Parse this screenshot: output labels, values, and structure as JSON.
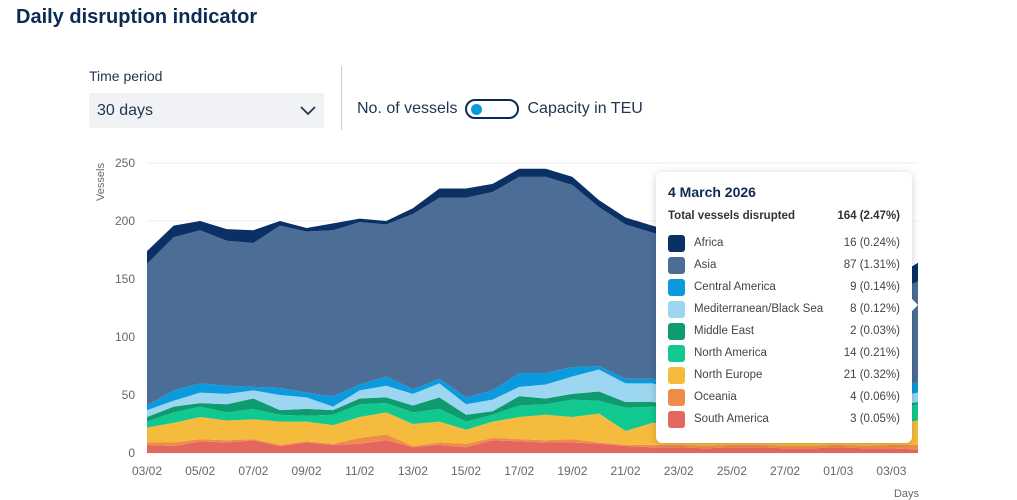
{
  "header": {
    "title": "Daily disruption indicator"
  },
  "controls": {
    "time_period_label": "Time period",
    "time_period_value": "30 days",
    "toggle_left": "No. of vessels",
    "toggle_right": "Capacity in TEU",
    "toggle_state": "No. of vessels"
  },
  "tooltip": {
    "date": "4 March 2026",
    "total_label": "Total vessels disrupted",
    "total_value": "164 (2.47%)",
    "rows": [
      {
        "name": "Africa",
        "value": "16 (0.24%)"
      },
      {
        "name": "Asia",
        "value": "87 (1.31%)"
      },
      {
        "name": "Central America",
        "value": "9 (0.14%)"
      },
      {
        "name": "Mediterranean/Black Sea",
        "value": "8 (0.12%)"
      },
      {
        "name": "Middle East",
        "value": "2 (0.03%)"
      },
      {
        "name": "North America",
        "value": "14 (0.21%)"
      },
      {
        "name": "North Europe",
        "value": "21 (0.32%)"
      },
      {
        "name": "Oceania",
        "value": "4 (0.06%)"
      },
      {
        "name": "South America",
        "value": "3 (0.05%)"
      }
    ]
  },
  "chart_data": {
    "type": "area",
    "stacked": true,
    "ylabel": "Vessels",
    "xlabel": "Days",
    "ylim": [
      0,
      250
    ],
    "yticks": [
      0,
      50,
      100,
      150,
      200,
      250
    ],
    "x": [
      "03/02",
      "04/02",
      "05/02",
      "06/02",
      "07/02",
      "08/02",
      "09/02",
      "10/02",
      "11/02",
      "12/02",
      "13/02",
      "14/02",
      "15/02",
      "16/02",
      "17/02",
      "18/02",
      "19/02",
      "20/02",
      "21/02",
      "22/02",
      "23/02",
      "24/02",
      "25/02",
      "26/02",
      "27/02",
      "28/02",
      "01/03",
      "02/03",
      "03/03",
      "04/03"
    ],
    "xtick_labels": [
      "03/02",
      "05/02",
      "07/02",
      "09/02",
      "11/02",
      "13/02",
      "15/02",
      "17/02",
      "19/02",
      "21/02",
      "23/02",
      "25/02",
      "27/02",
      "01/03",
      "03/03"
    ],
    "series": [
      {
        "name": "South America",
        "color": "#e3675e",
        "values": [
          7,
          6,
          10,
          9,
          11,
          6,
          9,
          7,
          8,
          11,
          5,
          7,
          5,
          11,
          10,
          9,
          9,
          8,
          6,
          5,
          5,
          4,
          5,
          5,
          4,
          4,
          5,
          4,
          4,
          3
        ]
      },
      {
        "name": "Oceania",
        "color": "#ef8c4a",
        "values": [
          2,
          3,
          2,
          2,
          1,
          1,
          1,
          1,
          5,
          5,
          1,
          2,
          3,
          2,
          2,
          2,
          3,
          1,
          1,
          2,
          2,
          2,
          2,
          2,
          2,
          2,
          2,
          2,
          3,
          4
        ]
      },
      {
        "name": "North Europe",
        "color": "#f5bb3c",
        "values": [
          13,
          17,
          19,
          17,
          17,
          20,
          17,
          16,
          18,
          19,
          19,
          18,
          12,
          14,
          19,
          22,
          19,
          25,
          12,
          19,
          18,
          17,
          16,
          16,
          15,
          15,
          16,
          17,
          18,
          21
        ]
      },
      {
        "name": "North America",
        "color": "#12c891",
        "values": [
          5,
          9,
          9,
          7,
          9,
          6,
          5,
          9,
          11,
          8,
          10,
          11,
          7,
          6,
          10,
          9,
          15,
          11,
          20,
          14,
          13,
          12,
          12,
          12,
          11,
          11,
          12,
          12,
          13,
          14
        ]
      },
      {
        "name": "Middle East",
        "color": "#0d9b6f",
        "values": [
          4,
          5,
          3,
          7,
          9,
          4,
          6,
          4,
          5,
          5,
          6,
          10,
          6,
          3,
          8,
          5,
          5,
          8,
          5,
          4,
          4,
          4,
          3,
          3,
          3,
          3,
          3,
          3,
          2,
          2
        ]
      },
      {
        "name": "Mediterranean/Black Sea",
        "color": "#9dd6f0",
        "values": [
          6,
          5,
          9,
          9,
          7,
          13,
          10,
          3,
          7,
          10,
          10,
          12,
          9,
          10,
          8,
          12,
          15,
          19,
          16,
          16,
          14,
          13,
          12,
          12,
          11,
          10,
          10,
          9,
          8,
          8
        ]
      },
      {
        "name": "Central America",
        "color": "#0b9ade",
        "values": [
          4,
          9,
          8,
          7,
          3,
          6,
          4,
          9,
          5,
          8,
          4,
          4,
          6,
          8,
          12,
          10,
          8,
          3,
          4,
          4,
          5,
          5,
          5,
          5,
          5,
          5,
          5,
          6,
          7,
          9
        ]
      },
      {
        "name": "Asia",
        "color": "#4c6d95",
        "values": [
          122,
          132,
          132,
          125,
          124,
          140,
          139,
          143,
          140,
          131,
          151,
          156,
          172,
          171,
          169,
          169,
          157,
          137,
          133,
          126,
          123,
          122,
          118,
          115,
          116,
          111,
          102,
          96,
          83,
          87
        ]
      },
      {
        "name": "Africa",
        "color": "#0a3066",
        "values": [
          11,
          10,
          8,
          10,
          11,
          4,
          3,
          6,
          3,
          3,
          5,
          8,
          8,
          7,
          7,
          7,
          7,
          6,
          6,
          6,
          6,
          6,
          7,
          8,
          8,
          9,
          10,
          11,
          12,
          16
        ]
      }
    ]
  }
}
